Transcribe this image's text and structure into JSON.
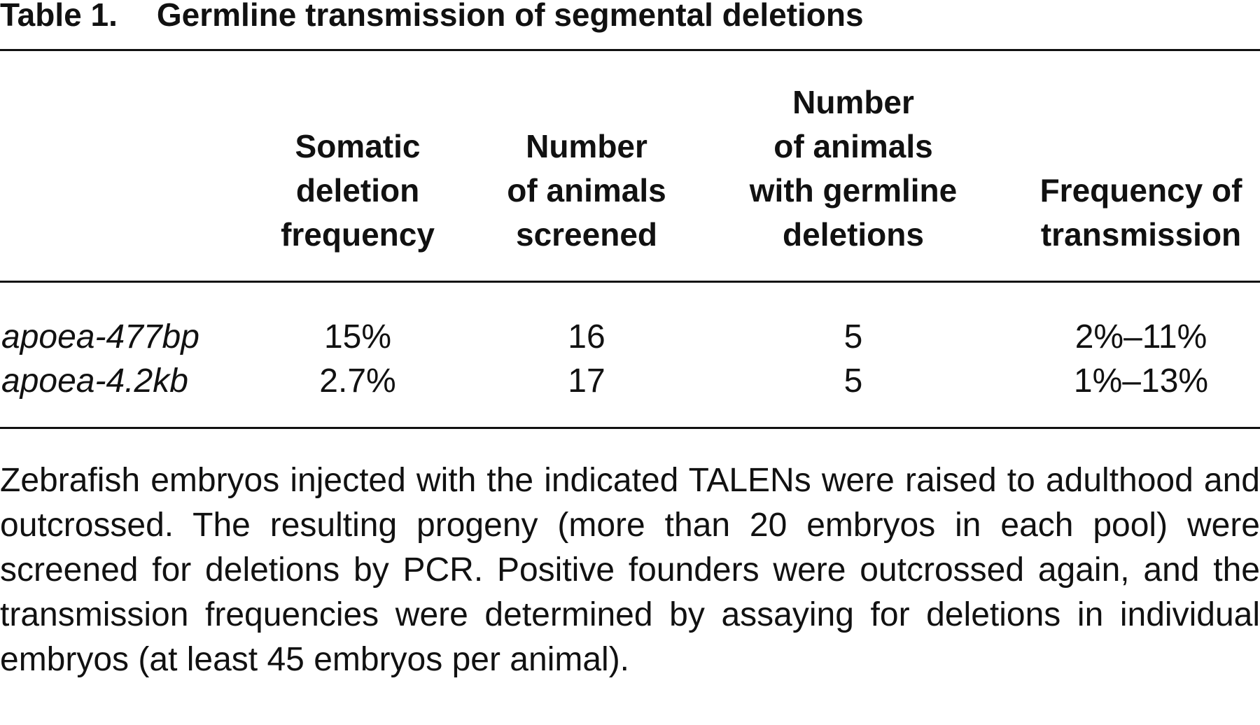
{
  "title": {
    "label": "Table 1.",
    "text": "Germline transmission of segmental deletions"
  },
  "table": {
    "header": [
      [],
      [
        "Somatic",
        "deletion",
        "frequency"
      ],
      [
        "Number",
        "of animals",
        "screened"
      ],
      [
        "Number",
        "of animals",
        "with germline",
        "deletions"
      ],
      [
        "Frequency of",
        "transmission"
      ]
    ],
    "rows": [
      [
        "apoea-477bp",
        "15%",
        16,
        5,
        "2%–11%"
      ],
      [
        "apoea-4.2kb",
        "2.7%",
        17,
        5,
        "1%–13%"
      ]
    ]
  },
  "footnote": "Zebrafish embryos injected with the indicated TALENs were raised to adulthood and outcrossed. The resulting progeny (more than 20 embryos in each pool) were screened for deletions by PCR. Positive founders were outcrossed again, and the transmission frequencies were determined by assaying for deletions in individual embryos (at least 45 embryos per animal)."
}
